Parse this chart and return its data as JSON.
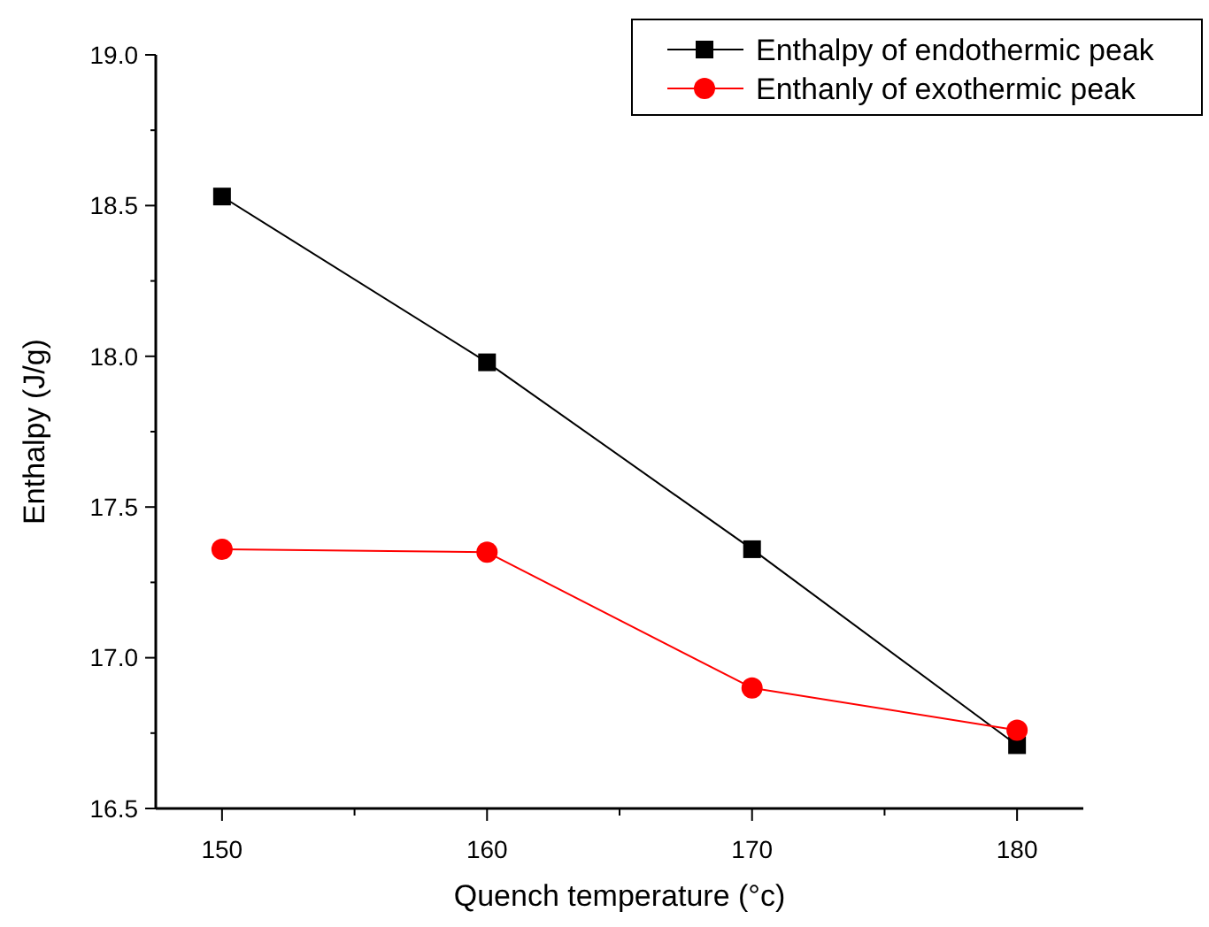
{
  "chart_data": {
    "type": "line",
    "xlabel": "Quench temperature (°c)",
    "ylabel": "Enthalpy (J/g)",
    "x": [
      150,
      160,
      170,
      180
    ],
    "xlim": [
      147.5,
      182.5
    ],
    "xticks": [
      150,
      {
        "value": 155,
        "label": null
      },
      160,
      {
        "value": 165,
        "label": null
      },
      170,
      {
        "value": 175,
        "label": null
      },
      180
    ],
    "ylim": [
      16.5,
      19.0
    ],
    "yticks": [
      {
        "value": 16.5,
        "label": "16.5"
      },
      {
        "value": 16.75,
        "label": null
      },
      {
        "value": 17.0,
        "label": "17.0"
      },
      {
        "value": 17.25,
        "label": null
      },
      {
        "value": 17.5,
        "label": "17.5"
      },
      {
        "value": 17.75,
        "label": null
      },
      {
        "value": 18.0,
        "label": "18.0"
      },
      {
        "value": 18.25,
        "label": null
      },
      {
        "value": 18.5,
        "label": "18.5"
      },
      {
        "value": 18.75,
        "label": null
      },
      {
        "value": 19.0,
        "label": "19.0"
      }
    ],
    "series": [
      {
        "name": "Enthalpy of endothermic peak",
        "color": "#000000",
        "marker": "square",
        "values": [
          18.53,
          17.98,
          17.36,
          16.71
        ]
      },
      {
        "name": "Enthanly of exothermic peak",
        "color": "#ff0000",
        "marker": "circle",
        "values": [
          17.36,
          17.35,
          16.9,
          16.76
        ]
      }
    ],
    "legend": "top right",
    "grid": false,
    "line_style": "solid"
  }
}
